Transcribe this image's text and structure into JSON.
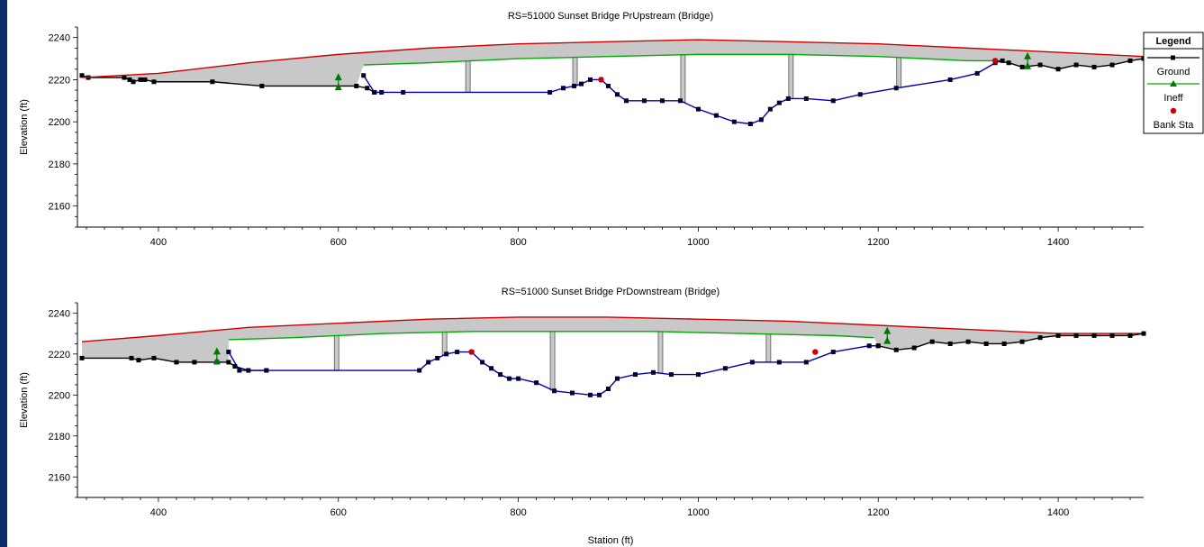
{
  "chart_data": [
    {
      "type": "line",
      "title": "RS=51000    Sunset Bridge PrUpstream (Bridge)",
      "xlabel": "",
      "ylabel": "Elevation (ft)",
      "xlim": [
        310,
        1495
      ],
      "ylim": [
        2150,
        2245
      ],
      "xticks": [
        400,
        600,
        800,
        1000,
        1200,
        1400
      ],
      "yticks": [
        2160,
        2180,
        2200,
        2220,
        2240
      ],
      "grid": false,
      "series": [
        {
          "name": "Ground",
          "color": "#000000",
          "x": [
            315,
            322,
            362,
            368,
            372,
            380,
            385,
            395,
            460,
            515,
            620,
            632,
            640,
            648
          ],
          "y": [
            2222,
            2221,
            2221,
            2220,
            2219,
            2220,
            2220,
            2219,
            2219,
            2217,
            2217,
            2216,
            2214,
            2214
          ]
        },
        {
          "name": "Bridge Deck Top",
          "color": "#cc0000",
          "x": [
            315,
            400,
            500,
            600,
            700,
            800,
            900,
            1000,
            1100,
            1200,
            1300,
            1400,
            1495
          ],
          "y": [
            2221,
            2223,
            2228,
            2232,
            2235,
            2237,
            2238,
            2239,
            2238,
            2237,
            2235,
            2233,
            2231
          ]
        },
        {
          "name": "Ineff",
          "color": "#00aa00",
          "x": [
            628,
            700,
            800,
            900,
            1000,
            1100,
            1200,
            1300,
            1340
          ],
          "y": [
            2227,
            2228,
            2230,
            2231,
            2232,
            2232,
            2231,
            2229,
            2229
          ]
        },
        {
          "name": "Bridge Opening",
          "color": "#0000aa",
          "x": [
            628,
            640,
            672,
            835,
            850,
            862,
            870,
            880,
            892,
            900,
            910,
            920,
            940,
            960,
            980,
            1000,
            1020,
            1040,
            1058,
            1070,
            1080,
            1090,
            1100,
            1120,
            1150,
            1180,
            1220,
            1280,
            1310,
            1330,
            1338
          ],
          "y": [
            2222,
            2214,
            2214,
            2214,
            2216,
            2217,
            2218,
            2220,
            2220,
            2217,
            2213,
            2210,
            2210,
            2210,
            2210,
            2206,
            2203,
            2200,
            2199,
            2201,
            2206,
            2209,
            2211,
            2211,
            2210,
            2213,
            2216,
            2220,
            2223,
            2228,
            2229
          ]
        },
        {
          "name": "Ground Right",
          "color": "#000000",
          "x": [
            1330,
            1345,
            1360,
            1380,
            1400,
            1420,
            1440,
            1460,
            1480,
            1495
          ],
          "y": [
            2229,
            2228,
            2226,
            2227,
            2225,
            2227,
            2226,
            2227,
            2229,
            2230
          ]
        }
      ],
      "piers": [
        744,
        863,
        983,
        1103,
        1223
      ],
      "bank_sta": [
        {
          "x": 892,
          "y": 2220
        },
        {
          "x": 1330,
          "y": 2229
        }
      ],
      "ineff_markers": [
        {
          "x": 600,
          "y": 2218
        },
        {
          "x": 1366,
          "y": 2228
        }
      ]
    },
    {
      "type": "line",
      "title": "RS=51000    Sunset Bridge PrDownstream (Bridge)",
      "xlabel": "Station (ft)",
      "ylabel": "Elevation (ft)",
      "xlim": [
        310,
        1495
      ],
      "ylim": [
        2150,
        2245
      ],
      "xticks": [
        400,
        600,
        800,
        1000,
        1200,
        1400
      ],
      "yticks": [
        2160,
        2180,
        2200,
        2220,
        2240
      ],
      "grid": false,
      "series": [
        {
          "name": "Ground",
          "color": "#000000",
          "x": [
            315,
            370,
            378,
            395,
            420,
            440,
            465,
            478,
            485,
            500,
            520
          ],
          "y": [
            2218,
            2218,
            2217,
            2218,
            2216,
            2216,
            2216,
            2216,
            2214,
            2212,
            2212
          ]
        },
        {
          "name": "Bridge Deck Top",
          "color": "#cc0000",
          "x": [
            315,
            400,
            500,
            600,
            700,
            800,
            900,
            1000,
            1100,
            1200,
            1300,
            1400,
            1495
          ],
          "y": [
            2226,
            2229,
            2233,
            2235,
            2237,
            2238,
            2238,
            2237,
            2236,
            2234,
            2232,
            2230,
            2230
          ]
        },
        {
          "name": "Ineff",
          "color": "#00aa00",
          "x": [
            478,
            550,
            650,
            750,
            850,
            950,
            1050,
            1150,
            1195
          ],
          "y": [
            2227,
            2228,
            2230,
            2231,
            2231,
            2231,
            2230,
            2229,
            2228
          ]
        },
        {
          "name": "Bridge Opening",
          "color": "#0000aa",
          "x": [
            478,
            490,
            520,
            690,
            700,
            710,
            720,
            732,
            748,
            760,
            770,
            780,
            790,
            800,
            820,
            840,
            860,
            880,
            890,
            900,
            910,
            930,
            950,
            970,
            1000,
            1030,
            1060,
            1090,
            1120,
            1150,
            1190,
            1200
          ],
          "y": [
            2221,
            2212,
            2212,
            2212,
            2216,
            2218,
            2220,
            2221,
            2221,
            2216,
            2213,
            2210,
            2208,
            2208,
            2206,
            2202,
            2201,
            2200,
            2200,
            2203,
            2208,
            2210,
            2211,
            2210,
            2210,
            2213,
            2216,
            2216,
            2216,
            2221,
            2224,
            2224
          ]
        },
        {
          "name": "Ground Right",
          "color": "#000000",
          "x": [
            1200,
            1220,
            1240,
            1260,
            1280,
            1300,
            1320,
            1340,
            1360,
            1380,
            1400,
            1420,
            1440,
            1460,
            1480,
            1495
          ],
          "y": [
            2224,
            2222,
            2223,
            2226,
            2225,
            2226,
            2225,
            2225,
            2226,
            2228,
            2229,
            2229,
            2229,
            2229,
            2229,
            2230
          ]
        }
      ],
      "piers": [
        598,
        718,
        838,
        958,
        1078
      ],
      "bank_sta": [
        {
          "x": 748,
          "y": 2221
        },
        {
          "x": 1130,
          "y": 2221
        }
      ],
      "ineff_markers": [
        {
          "x": 465,
          "y": 2218
        },
        {
          "x": 1210,
          "y": 2228
        }
      ]
    }
  ],
  "legend": {
    "title": "Legend",
    "items": [
      {
        "label": "Ground",
        "color": "#000000",
        "marker": "square"
      },
      {
        "label": "Ineff",
        "color": "#00aa00",
        "marker": "triangle"
      },
      {
        "label": "Bank Sta",
        "color": "#cc0000",
        "marker": "circle"
      }
    ]
  }
}
